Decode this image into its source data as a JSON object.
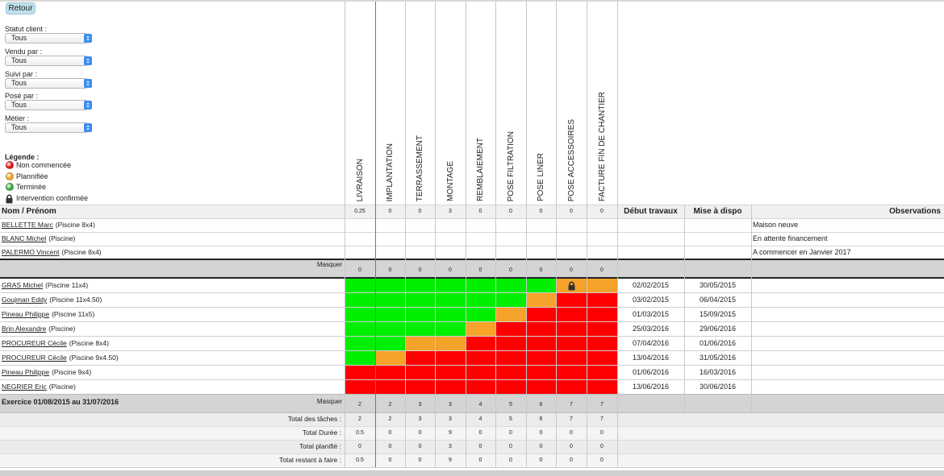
{
  "back_button": "Retour",
  "filters": [
    {
      "label": "Statut client :",
      "value": "Tous"
    },
    {
      "label": "Vendu par :",
      "value": "Tous"
    },
    {
      "label": "Suivi par :",
      "value": "Tous"
    },
    {
      "label": "Posé par :",
      "value": "Tous"
    },
    {
      "label": "Métier :",
      "value": "Tous"
    }
  ],
  "legend": {
    "title": "Légende :",
    "items": [
      {
        "label": "Non commencée",
        "color": "#e01010"
      },
      {
        "label": "Plannifiée",
        "color": "#f0a020"
      },
      {
        "label": "Terminée",
        "color": "#38a838"
      },
      {
        "label": "Intervention confirmée",
        "icon": "lock"
      }
    ]
  },
  "table": {
    "task_columns": [
      "LIVRAISON",
      "IMPLANTATION",
      "TERRASSEMENT",
      "MONTAGE",
      "REMBLAIEMENT",
      "POSE FILTRATION",
      "POSE LINER",
      "POSE ACCESSOIRES",
      "FACTURE FIN DE CHANTIER"
    ],
    "columns": {
      "name": "Nom / Prénom",
      "start": "Début travaux",
      "dispo": "Mise à dispo",
      "observations": "Observations"
    },
    "header_values": [
      0.25,
      0,
      0,
      3,
      0,
      0,
      0,
      0,
      0
    ],
    "clients": [
      {
        "name": "BELLETTE Marc",
        "detail": "(Piscine 8x4)",
        "observation": "Maison neuve"
      },
      {
        "name": "BLANC Michel",
        "detail": "(Piscine)",
        "observation": "En attente financement"
      },
      {
        "name": "PALERMO Vincent",
        "detail": "(Piscine 8x4)",
        "observation": "A commencer en Janvier 2017"
      }
    ],
    "hide_label": "Masquer",
    "hidden_values": [
      0,
      0,
      0,
      0,
      0,
      0,
      0,
      0,
      0
    ],
    "planned": [
      {
        "name": "GRAS Michel",
        "detail": "(Piscine 11x4)",
        "start": "02/02/2015",
        "dispo": "30/05/2015",
        "cells": [
          "#00ee00",
          "#00ee00",
          "#00ee00",
          "#00ee00",
          "#00ee00",
          "#00ee00",
          "#00ee00",
          {
            "color": "#f5a32a",
            "icon": "lock"
          },
          "#f5a32a"
        ]
      },
      {
        "name": "Goujman Eddy",
        "detail": "(Piscine 11x4.50)",
        "start": "03/02/2015",
        "dispo": "06/04/2015",
        "cells": [
          "#00ee00",
          "#00ee00",
          "#00ee00",
          "#00ee00",
          "#00ee00",
          "#00ee00",
          "#f5a32a",
          "#ff0000",
          "#ff0000"
        ]
      },
      {
        "name": "Pineau Philippe",
        "detail": "(Piscine 11x5)",
        "start": "01/03/2015",
        "dispo": "15/09/2015",
        "cells": [
          "#00ee00",
          "#00ee00",
          "#00ee00",
          "#00ee00",
          "#00ee00",
          "#f5a32a",
          "#ff0000",
          "#ff0000",
          "#ff0000"
        ]
      },
      {
        "name": "Brin Alexandre",
        "detail": "(Piscine)",
        "start": "25/03/2016",
        "dispo": "29/06/2016",
        "cells": [
          "#00ee00",
          "#00ee00",
          "#00ee00",
          "#00ee00",
          "#f5a32a",
          "#ff0000",
          "#ff0000",
          "#ff0000",
          "#ff0000"
        ]
      },
      {
        "name": "PROCUREUR Cécile",
        "detail": "(Piscine 8x4)",
        "start": "07/04/2016",
        "dispo": "01/06/2016",
        "cells": [
          "#00ee00",
          "#00ee00",
          "#f5a32a",
          "#f5a32a",
          "#ff0000",
          "#ff0000",
          "#ff0000",
          "#ff0000",
          "#ff0000"
        ]
      },
      {
        "name": "PROCUREUR Cécile",
        "detail": "(Piscine 9x4.50)",
        "start": "13/04/2016",
        "dispo": "31/05/2016",
        "cells": [
          "#00ee00",
          "#f5a32a",
          "#ff0000",
          "#ff0000",
          "#ff0000",
          "#ff0000",
          "#ff0000",
          "#ff0000",
          "#ff0000"
        ]
      },
      {
        "name": "Pineau Philippe",
        "detail": "(Piscine 9x4)",
        "start": "01/06/2016",
        "dispo": "16/03/2016",
        "cells": [
          "#ff0000",
          "#ff0000",
          "#ff0000",
          "#ff0000",
          "#ff0000",
          "#ff0000",
          "#ff0000",
          "#ff0000",
          "#ff0000"
        ]
      },
      {
        "name": "NEGRIER Eric",
        "detail": "(Piscine)",
        "start": "13/06/2016",
        "dispo": "30/06/2016",
        "cells": [
          "#ff0000",
          "#ff0000",
          "#ff0000",
          "#ff0000",
          "#ff0000",
          "#ff0000",
          "#ff0000",
          "#ff0000",
          "#ff0000"
        ]
      }
    ],
    "period": {
      "label": "Exercice 01/08/2015 au 31/07/2016",
      "values": [
        2,
        2,
        3,
        3,
        4,
        5,
        6,
        7,
        7
      ]
    },
    "totals": [
      {
        "label": "Total des tâches :",
        "values": [
          2,
          2,
          3,
          3,
          4,
          5,
          6,
          7,
          7
        ]
      },
      {
        "label": "Total Durée :",
        "values": [
          0.5,
          0,
          0,
          9,
          0,
          0,
          0,
          0,
          0
        ]
      },
      {
        "label": "Total planifié :",
        "values": [
          0,
          0,
          0,
          3,
          0,
          0,
          0,
          0,
          0
        ]
      },
      {
        "label": "Total restant à faire :",
        "values": [
          0.5,
          0,
          0,
          9,
          0,
          0,
          0,
          0,
          0
        ]
      }
    ]
  }
}
